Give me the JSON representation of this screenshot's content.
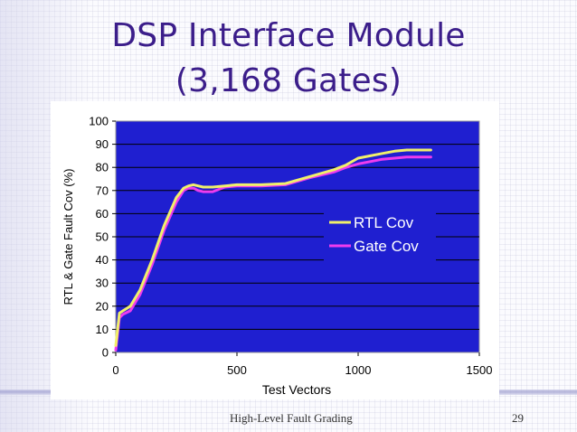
{
  "slide": {
    "title_line1": "DSP Interface Module",
    "title_line2": "(3,168 Gates)",
    "footer_left": "High-Level Fault Grading",
    "page_number": "29",
    "accent_color": "#3b1d8a"
  },
  "chart_data": {
    "type": "line",
    "xlabel": "Test Vectors",
    "ylabel": "RTL & Gate Fault Cov (%)",
    "xlim": [
      0,
      1500
    ],
    "ylim": [
      0,
      100
    ],
    "xticks": [
      0,
      500,
      1000,
      1500
    ],
    "yticks": [
      0,
      10,
      20,
      30,
      40,
      50,
      60,
      70,
      80,
      90,
      100
    ],
    "grid": "horizontal",
    "plot_background": "#1f1fd0",
    "legend_position": "right",
    "series": [
      {
        "name": "RTL Cov",
        "color": "#f0f06a",
        "x": [
          0,
          15,
          30,
          60,
          100,
          150,
          200,
          250,
          280,
          300,
          320,
          340,
          360,
          400,
          450,
          500,
          600,
          700,
          800,
          900,
          950,
          1000,
          1050,
          1100,
          1150,
          1200,
          1250,
          1300
        ],
        "y": [
          3,
          17,
          18,
          20,
          27,
          40,
          55,
          67,
          71,
          72,
          72.5,
          72,
          71.5,
          71.5,
          72,
          72.5,
          72.5,
          73,
          76,
          79,
          81,
          84,
          85,
          86,
          87,
          87.5,
          87.5,
          87.5
        ]
      },
      {
        "name": "Gate Cov",
        "color": "#ee3cee",
        "x": [
          0,
          15,
          30,
          60,
          100,
          150,
          200,
          250,
          280,
          300,
          320,
          340,
          360,
          400,
          450,
          500,
          600,
          700,
          800,
          900,
          950,
          1000,
          1050,
          1100,
          1150,
          1200,
          1250,
          1300
        ],
        "y": [
          1,
          15,
          16.5,
          18,
          25,
          38,
          53,
          65,
          70,
          71,
          71,
          70,
          69.5,
          69.5,
          71.5,
          72,
          72,
          72.5,
          75.5,
          78,
          80,
          81.5,
          82.5,
          83.5,
          84,
          84.5,
          84.5,
          84.5
        ]
      }
    ]
  }
}
